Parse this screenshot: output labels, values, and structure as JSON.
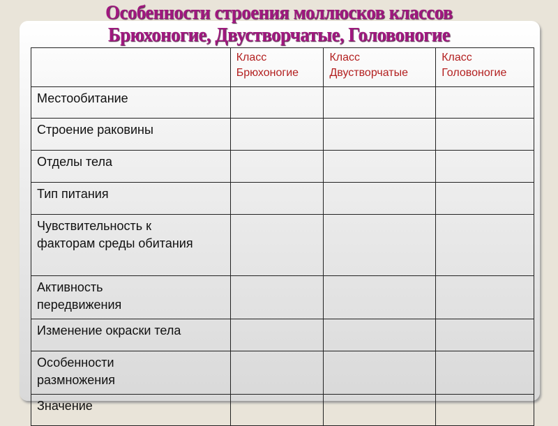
{
  "title": {
    "line1": "Особенности строения моллюсков классов",
    "line2": "Брюхоногие, Двустворчатые, Головоногие"
  },
  "colors": {
    "title": "#a0177f",
    "header": "#b32020",
    "background": "#e9e4d9"
  },
  "table": {
    "headers": [
      {
        "line1": "",
        "line2": ""
      },
      {
        "line1": "Класс",
        "line2": "Брюхоногие"
      },
      {
        "line1": "Класс",
        "line2": "Двустворчатые"
      },
      {
        "line1": "Класс",
        "line2": "Головоногие"
      }
    ],
    "rows": [
      "Местообитание",
      "Строение раковины",
      "Отделы тела",
      "Тип питания",
      "Чувствительность к факторам среды обитания",
      "Активность передвижения",
      "Изменение окраски тела",
      "Особенности размножения",
      "Значение"
    ]
  }
}
